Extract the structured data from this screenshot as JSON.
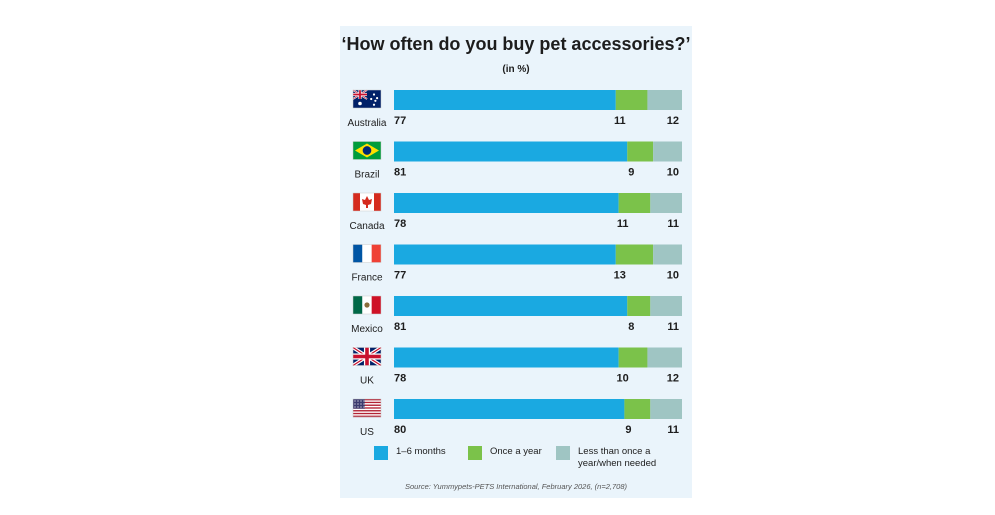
{
  "colors": {
    "series_1": "#1aa9e1",
    "series_2": "#7bc24a",
    "series_3": "#9fc5c3"
  },
  "chart_data": {
    "type": "bar",
    "orientation": "horizontal",
    "stacked": true,
    "title": "‘How often do you buy pet accessories?’",
    "subtitle": "(in %)",
    "categories": [
      "Australia",
      "Brazil",
      "Canada",
      "France",
      "Mexico",
      "UK",
      "US"
    ],
    "category_icons": [
      "australia-flag-icon",
      "brazil-flag-icon",
      "canada-flag-icon",
      "france-flag-icon",
      "mexico-flag-icon",
      "uk-flag-icon",
      "us-flag-icon"
    ],
    "series": [
      {
        "name": "1–6 months",
        "values": [
          77,
          81,
          78,
          77,
          81,
          78,
          80
        ]
      },
      {
        "name": "Once a year",
        "values": [
          11,
          9,
          11,
          13,
          8,
          10,
          9
        ]
      },
      {
        "name": "Less than once a year/when needed",
        "values": [
          12,
          10,
          11,
          10,
          11,
          12,
          11
        ]
      }
    ],
    "xlim": [
      0,
      100
    ],
    "legend_position": "bottom",
    "grid": false
  },
  "legend": {
    "labels": [
      "1–6 months",
      "Once a year",
      "Less than once a year/when needed"
    ]
  },
  "source": "Source: Yummypets-PETS International, February 2026, (n=2,708)"
}
